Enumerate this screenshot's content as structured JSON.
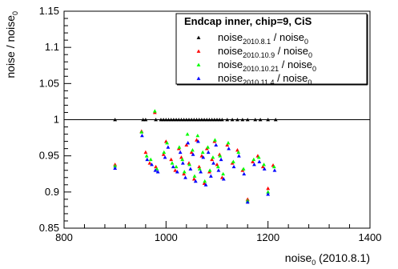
{
  "chart_data": {
    "type": "scatter",
    "ylabel": "noise / noise",
    "ylabel_sub": "0",
    "xlabel": "noise",
    "xlabel_sub": "0",
    "xlabel_suffix": " (2010.8.1)",
    "xlim": [
      800,
      1400
    ],
    "ylim": [
      0.85,
      1.15
    ],
    "xticks": [
      800,
      1000,
      1200,
      1400
    ],
    "xtick_labels": [
      "800",
      "1000",
      "1200",
      "1400"
    ],
    "yticks": [
      0.85,
      0.9,
      0.95,
      1.0,
      1.05,
      1.1,
      1.15
    ],
    "ytick_labels": [
      "0.85",
      "0.9",
      "0.95",
      "1",
      "1.05",
      "1.1",
      "1.15"
    ],
    "reference_line_y": 1.0,
    "legend": {
      "title": "Endcap inner, chip=9, CiS",
      "placement": "top-right"
    },
    "series": [
      {
        "name": "noise",
        "name_sub": "2010.8.1",
        "name_suffix": " / noise",
        "name_suffix_sub": "0",
        "color": "#000000",
        "points": [
          [
            900,
            1.0
          ],
          [
            955,
            1.0
          ],
          [
            960,
            1.0
          ],
          [
            980,
            1.0
          ],
          [
            990,
            1.0
          ],
          [
            995,
            1.0
          ],
          [
            1000,
            1.0
          ],
          [
            1005,
            1.0
          ],
          [
            1010,
            1.0
          ],
          [
            1015,
            1.0
          ],
          [
            1020,
            1.0
          ],
          [
            1025,
            1.0
          ],
          [
            1030,
            1.0
          ],
          [
            1035,
            1.0
          ],
          [
            1040,
            1.0
          ],
          [
            1045,
            1.0
          ],
          [
            1050,
            1.0
          ],
          [
            1055,
            1.0
          ],
          [
            1060,
            1.0
          ],
          [
            1065,
            1.0
          ],
          [
            1070,
            1.0
          ],
          [
            1075,
            1.0
          ],
          [
            1080,
            1.0
          ],
          [
            1085,
            1.0
          ],
          [
            1090,
            1.0
          ],
          [
            1095,
            1.0
          ],
          [
            1100,
            1.0
          ],
          [
            1105,
            1.0
          ],
          [
            1110,
            1.0
          ],
          [
            1120,
            1.0
          ],
          [
            1130,
            1.0
          ],
          [
            1140,
            1.0
          ],
          [
            1150,
            1.0
          ],
          [
            1160,
            1.0
          ],
          [
            1175,
            1.0
          ],
          [
            1185,
            1.0
          ],
          [
            1200,
            1.0
          ],
          [
            1215,
            1.0
          ]
        ]
      },
      {
        "name": "noise",
        "name_sub": "2010.10.9",
        "name_suffix": " / noise",
        "name_suffix_sub": "0",
        "color": "#ff0000",
        "points": [
          [
            900,
            0.938
          ],
          [
            952,
            0.984
          ],
          [
            960,
            0.955
          ],
          [
            968,
            0.94
          ],
          [
            978,
            1.01
          ],
          [
            980,
            0.935
          ],
          [
            995,
            0.952
          ],
          [
            1000,
            0.97
          ],
          [
            1010,
            0.945
          ],
          [
            1018,
            0.93
          ],
          [
            1025,
            0.96
          ],
          [
            1030,
            0.948
          ],
          [
            1035,
            0.925
          ],
          [
            1040,
            0.965
          ],
          [
            1045,
            0.94
          ],
          [
            1050,
            0.955
          ],
          [
            1055,
            0.918
          ],
          [
            1060,
            0.972
          ],
          [
            1065,
            0.935
          ],
          [
            1070,
            0.95
          ],
          [
            1075,
            0.912
          ],
          [
            1080,
            0.96
          ],
          [
            1085,
            0.928
          ],
          [
            1090,
            0.945
          ],
          [
            1095,
            0.97
          ],
          [
            1100,
            0.938
          ],
          [
            1105,
            0.952
          ],
          [
            1110,
            0.92
          ],
          [
            1120,
            0.965
          ],
          [
            1130,
            0.94
          ],
          [
            1140,
            0.958
          ],
          [
            1150,
            0.93
          ],
          [
            1160,
            0.89
          ],
          [
            1170,
            0.942
          ],
          [
            1180,
            0.95
          ],
          [
            1190,
            0.935
          ],
          [
            1200,
            0.905
          ],
          [
            1210,
            0.937
          ]
        ]
      },
      {
        "name": "noise",
        "name_sub": "2010.10.21",
        "name_suffix": " / noise",
        "name_suffix_sub": "0",
        "color": "#00ff00",
        "points": [
          [
            900,
            0.936
          ],
          [
            952,
            0.983
          ],
          [
            962,
            0.95
          ],
          [
            970,
            0.945
          ],
          [
            978,
            1.012
          ],
          [
            982,
            0.932
          ],
          [
            996,
            0.955
          ],
          [
            1002,
            0.968
          ],
          [
            1012,
            0.94
          ],
          [
            1020,
            0.935
          ],
          [
            1026,
            0.962
          ],
          [
            1032,
            0.945
          ],
          [
            1036,
            0.928
          ],
          [
            1042,
            0.98
          ],
          [
            1046,
            0.938
          ],
          [
            1052,
            0.958
          ],
          [
            1056,
            0.922
          ],
          [
            1062,
            0.978
          ],
          [
            1066,
            0.932
          ],
          [
            1072,
            0.955
          ],
          [
            1076,
            0.915
          ],
          [
            1082,
            0.962
          ],
          [
            1086,
            0.93
          ],
          [
            1092,
            0.948
          ],
          [
            1096,
            0.972
          ],
          [
            1102,
            0.935
          ],
          [
            1106,
            0.95
          ],
          [
            1112,
            0.925
          ],
          [
            1122,
            0.968
          ],
          [
            1132,
            0.942
          ],
          [
            1142,
            0.955
          ],
          [
            1152,
            0.932
          ],
          [
            1160,
            0.888
          ],
          [
            1172,
            0.945
          ],
          [
            1182,
            0.948
          ],
          [
            1192,
            0.938
          ],
          [
            1200,
            0.9
          ],
          [
            1212,
            0.935
          ]
        ]
      },
      {
        "name": "noise",
        "name_sub": "2010.11.4",
        "name_suffix": " / noise",
        "name_suffix_sub": "0",
        "color": "#0000ff",
        "points": [
          [
            900,
            0.933
          ],
          [
            953,
            0.978
          ],
          [
            963,
            0.945
          ],
          [
            972,
            0.938
          ],
          [
            979,
            0.93
          ],
          [
            984,
            0.928
          ],
          [
            998,
            0.948
          ],
          [
            1004,
            0.962
          ],
          [
            1014,
            0.935
          ],
          [
            1022,
            0.928
          ],
          [
            1028,
            0.955
          ],
          [
            1033,
            0.94
          ],
          [
            1038,
            0.92
          ],
          [
            1043,
            0.968
          ],
          [
            1048,
            0.932
          ],
          [
            1053,
            0.952
          ],
          [
            1058,
            0.915
          ],
          [
            1063,
            0.97
          ],
          [
            1068,
            0.928
          ],
          [
            1073,
            0.948
          ],
          [
            1078,
            0.91
          ],
          [
            1083,
            0.955
          ],
          [
            1088,
            0.922
          ],
          [
            1093,
            0.94
          ],
          [
            1098,
            0.965
          ],
          [
            1103,
            0.93
          ],
          [
            1108,
            0.945
          ],
          [
            1113,
            0.918
          ],
          [
            1123,
            0.96
          ],
          [
            1133,
            0.935
          ],
          [
            1143,
            0.95
          ],
          [
            1153,
            0.925
          ],
          [
            1160,
            0.886
          ],
          [
            1173,
            0.938
          ],
          [
            1183,
            0.942
          ],
          [
            1193,
            0.932
          ],
          [
            1200,
            0.897
          ],
          [
            1213,
            0.93
          ]
        ]
      }
    ]
  }
}
